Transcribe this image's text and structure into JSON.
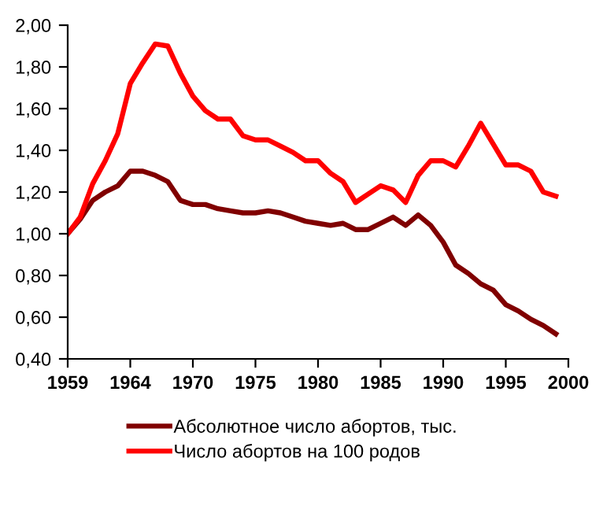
{
  "chart_data": {
    "type": "line",
    "categories": [
      "1959",
      null,
      null,
      null,
      null,
      "1964",
      null,
      null,
      null,
      null,
      "1970",
      null,
      null,
      null,
      null,
      "1975",
      null,
      null,
      null,
      null,
      "1980",
      null,
      null,
      null,
      null,
      "1985",
      null,
      null,
      null,
      null,
      "1990",
      null,
      null,
      null,
      null,
      "1995",
      null,
      null,
      null,
      null,
      "2000"
    ],
    "series": [
      {
        "name": "Абсолютное число абортов, тыс.",
        "color": "#800000",
        "values": [
          1.0,
          1.07,
          1.16,
          1.2,
          1.23,
          1.3,
          1.3,
          1.28,
          1.25,
          1.16,
          1.14,
          1.14,
          1.12,
          1.11,
          1.1,
          1.1,
          1.11,
          1.1,
          1.08,
          1.06,
          1.05,
          1.04,
          1.05,
          1.02,
          1.02,
          1.05,
          1.08,
          1.04,
          1.09,
          1.04,
          0.96,
          0.85,
          0.81,
          0.76,
          0.73,
          0.66,
          0.63,
          0.59,
          0.56,
          0.52,
          null
        ]
      },
      {
        "name": "Число абортов на 100 родов",
        "color": "#ff0000",
        "values": [
          1.0,
          1.08,
          1.24,
          1.35,
          1.48,
          1.72,
          1.82,
          1.91,
          1.9,
          1.77,
          1.66,
          1.59,
          1.55,
          1.55,
          1.47,
          1.45,
          1.45,
          1.42,
          1.39,
          1.35,
          1.35,
          1.29,
          1.25,
          1.15,
          1.19,
          1.23,
          1.21,
          1.15,
          1.28,
          1.35,
          1.35,
          1.32,
          1.42,
          1.53,
          1.43,
          1.33,
          1.33,
          1.3,
          1.2,
          1.18,
          null
        ]
      }
    ],
    "ylim": [
      0.4,
      2.0
    ],
    "yticks": [
      {
        "value": 0.4,
        "label": "0,40"
      },
      {
        "value": 0.6,
        "label": "0,60"
      },
      {
        "value": 0.8,
        "label": "0,80"
      },
      {
        "value": 1.0,
        "label": "1,00"
      },
      {
        "value": 1.2,
        "label": "1,20"
      },
      {
        "value": 1.4,
        "label": "1,40"
      },
      {
        "value": 1.6,
        "label": "1,60"
      },
      {
        "value": 1.8,
        "label": "1,80"
      },
      {
        "value": 2.0,
        "label": "2,00"
      }
    ],
    "grid": false,
    "legend": "bottom",
    "marker": "none",
    "line_style": "solid"
  }
}
